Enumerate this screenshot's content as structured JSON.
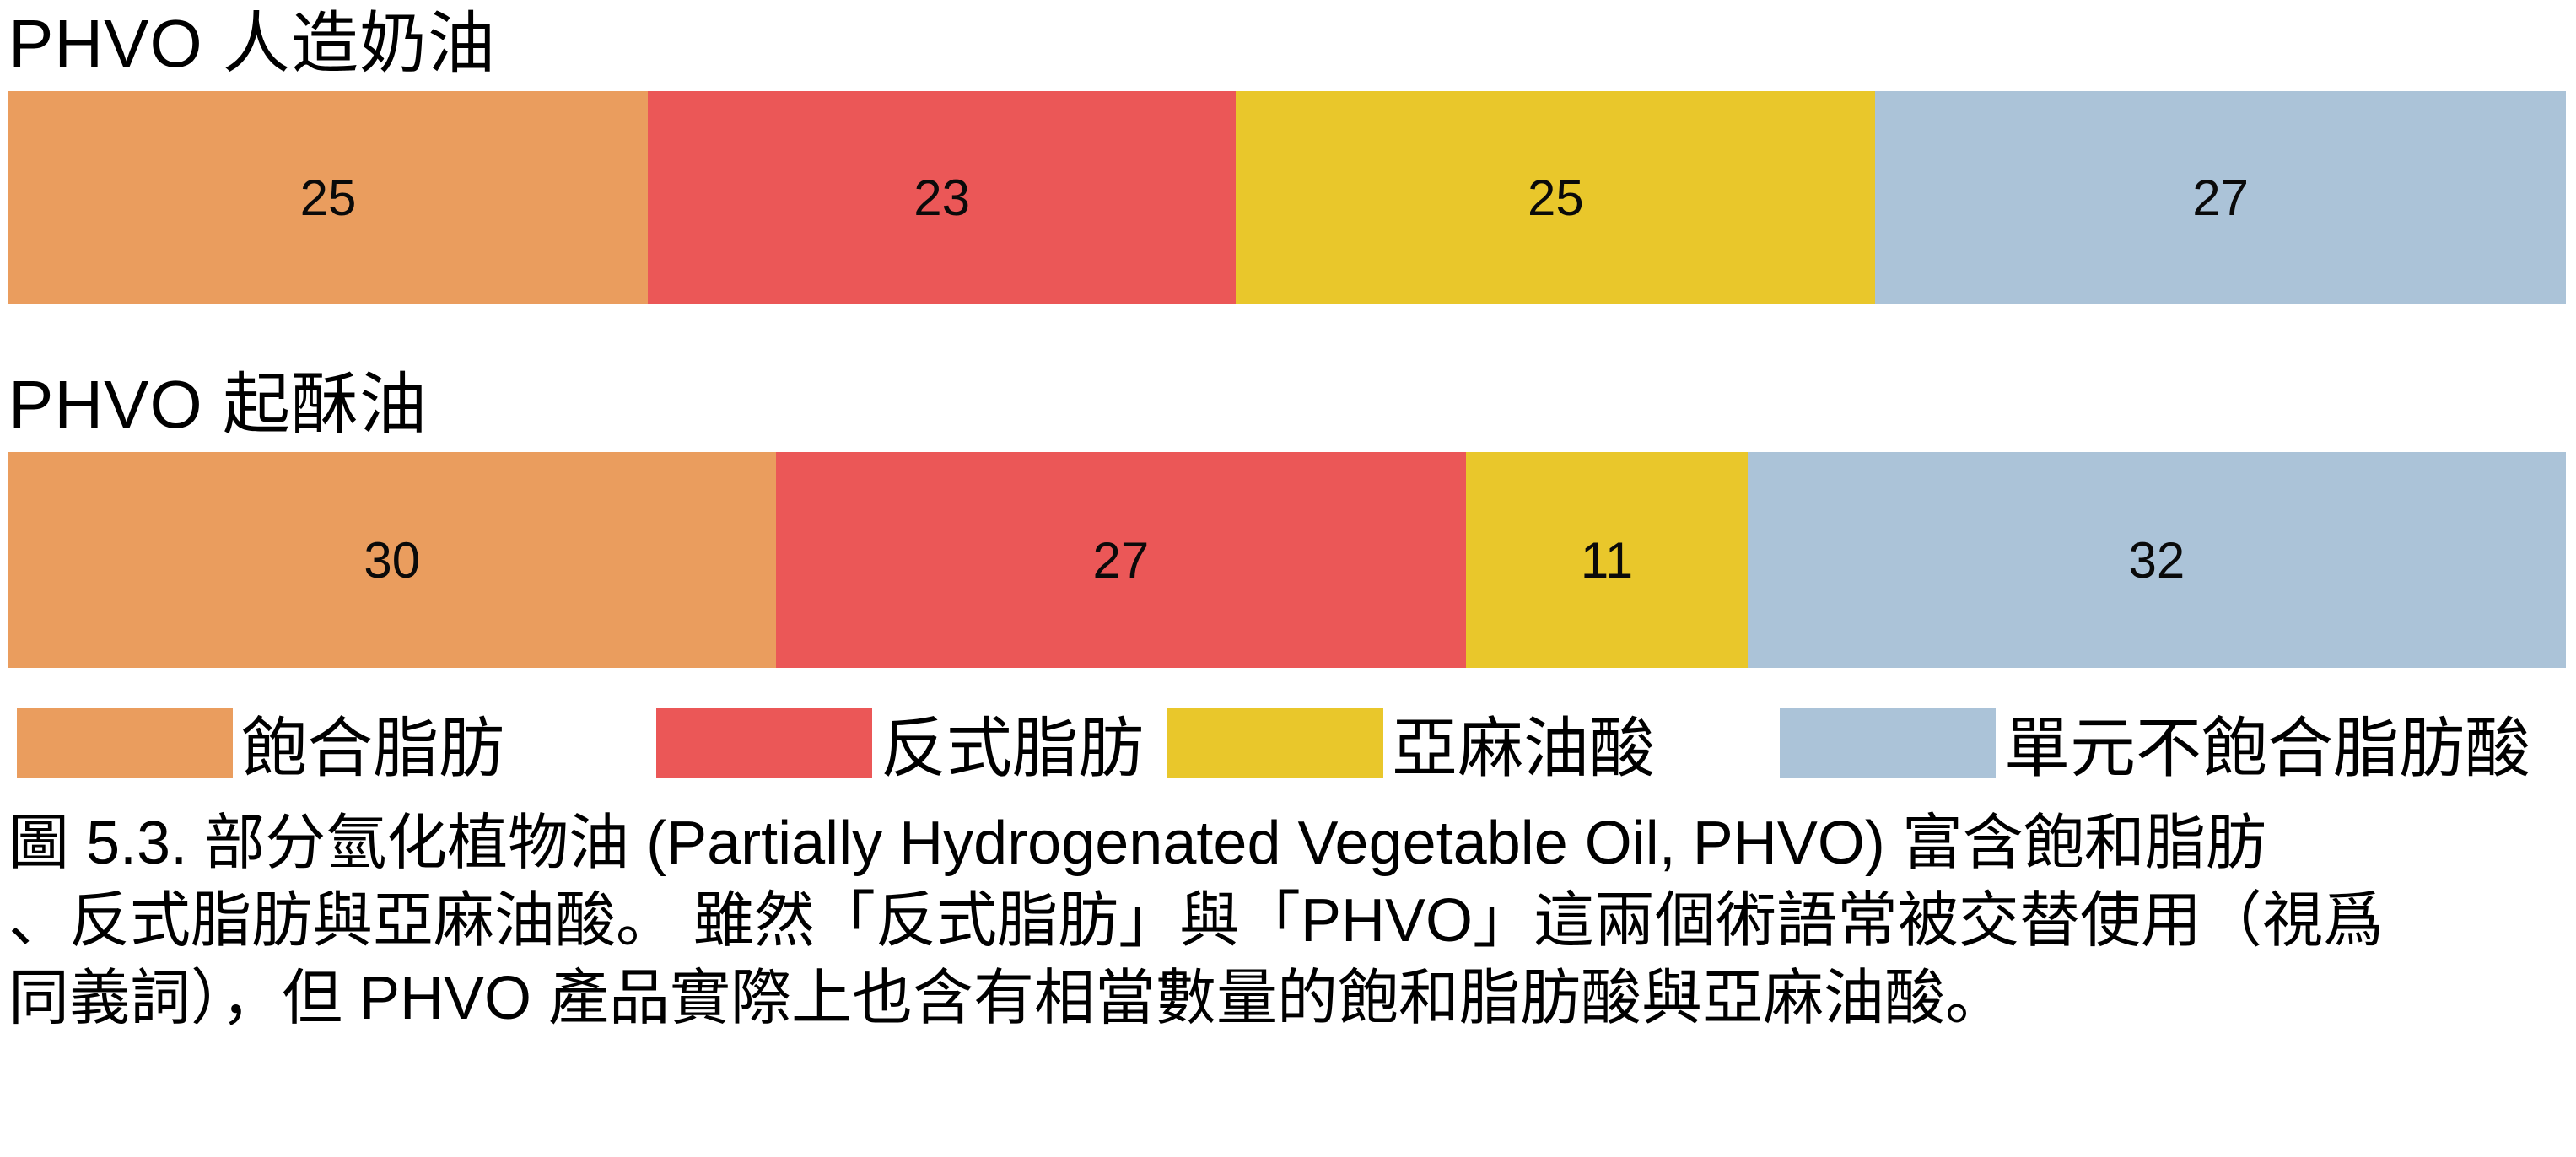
{
  "colors": {
    "saturated_fat": "#EA9D5E",
    "trans_fat": "#EB5757",
    "linoleic_acid": "#E9C72B",
    "monounsaturated": "#ABC3D8",
    "background": "#FFFFFF",
    "text": "#000000"
  },
  "chart_data": {
    "type": "bar",
    "orientation": "horizontal_stacked",
    "xlim": [
      0,
      100
    ],
    "grid": false,
    "value_labels_shown": true,
    "series_labels": [
      "飽合脂肪",
      "反式脂肪",
      "亞麻油酸",
      "單元不飽合脂肪酸"
    ],
    "colors": [
      "#EA9D5E",
      "#EB5757",
      "#E9C72B",
      "#ABC3D8"
    ],
    "bars": [
      {
        "title": "PHVO 人造奶油",
        "segments": [
          {
            "label": "飽合脂肪",
            "value": 25
          },
          {
            "label": "反式脂肪",
            "value": 23
          },
          {
            "label": "亞麻油酸",
            "value": 25
          },
          {
            "label": "單元不飽合脂肪酸",
            "value": 27
          }
        ]
      },
      {
        "title": "PHVO 起酥油",
        "segments": [
          {
            "label": "飽合脂肪",
            "value": 30
          },
          {
            "label": "反式脂肪",
            "value": 27
          },
          {
            "label": "亞麻油酸",
            "value": 11
          },
          {
            "label": "單元不飽合脂肪酸",
            "value": 32
          }
        ]
      }
    ],
    "legend": {
      "position": "bottom",
      "entries": [
        {
          "label": "飽合脂肪",
          "color": "#EA9D5E"
        },
        {
          "label": "反式脂肪",
          "color": "#EB5757"
        },
        {
          "label": "亞麻油酸",
          "color": "#E9C72B"
        },
        {
          "label": "單元不飽合脂肪酸",
          "color": "#ABC3D8"
        }
      ]
    }
  },
  "caption": {
    "lines": [
      "圖 5.3. 部分氫化植物油 (Partially Hydrogenated Vegetable Oil, PHVO) 富含飽和脂肪",
      "、反式脂肪與亞麻油酸。 雖然「反式脂肪」與「PHVO」這兩個術語常被交替使用（視爲",
      "同義詞），但 PHVO 產品實際上也含有相當數量的飽和脂肪酸與亞麻油酸。"
    ]
  }
}
